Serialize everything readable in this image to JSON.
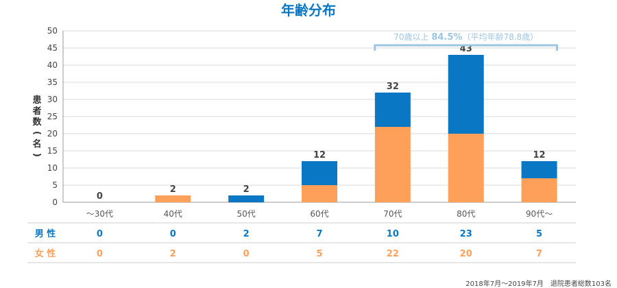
{
  "chart_data": {
    "type": "bar",
    "stacked": true,
    "title": "年齢分布",
    "ylabel": "患者数(名)",
    "ylim": [
      0,
      50
    ],
    "yticks": [
      0,
      5,
      10,
      15,
      20,
      25,
      30,
      35,
      40,
      45,
      50
    ],
    "grid": true,
    "categories": [
      "〜30代",
      "40代",
      "50代",
      "60代",
      "70代",
      "80代",
      "90代〜"
    ],
    "totals": [
      "0",
      "2",
      "2",
      "12",
      "32",
      "43",
      "12"
    ],
    "series": [
      {
        "name": "女 性",
        "values": [
          0,
          2,
          0,
          5,
          22,
          20,
          7
        ],
        "color": "#ffa05a"
      },
      {
        "name": "男 性",
        "values": [
          0,
          0,
          2,
          7,
          10,
          23,
          5
        ],
        "color": "#0a77c4"
      }
    ],
    "table_rows": [
      {
        "label": "男 性",
        "values": [
          "0",
          "0",
          "2",
          "7",
          "10",
          "23",
          "5"
        ],
        "color": "#0a77c4"
      },
      {
        "label": "女 性",
        "values": [
          "0",
          "2",
          "0",
          "5",
          "22",
          "20",
          "7"
        ],
        "color": "#ffa05a"
      }
    ],
    "annotation": {
      "text_prefix": "70歳以上 ",
      "text_bold": "84.5%",
      "text_suffix": "（平均年齢78.8歳）",
      "color": "#9cc6e4",
      "from_category": 4,
      "to_category": 6
    },
    "footnote": "2018年7月〜2019年7月　退院患者総数103名"
  }
}
